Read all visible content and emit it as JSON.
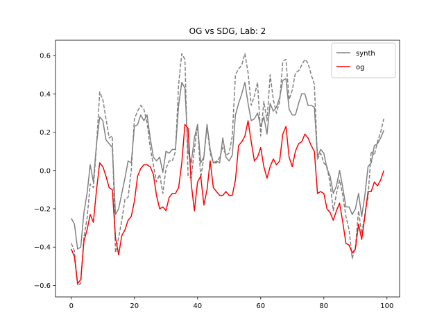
{
  "chart_data": {
    "type": "line",
    "title": "OG vs SDG, Lab: 2",
    "xlabel": "",
    "ylabel": "",
    "xlim": [
      -5,
      104
    ],
    "ylim": [
      -0.66,
      0.68
    ],
    "xticks": [
      0,
      20,
      40,
      60,
      80,
      100
    ],
    "yticks": [
      -0.6,
      -0.4,
      -0.2,
      0.0,
      0.2,
      0.4,
      0.6
    ],
    "xtick_labels": [
      "0",
      "20",
      "40",
      "60",
      "80",
      "100"
    ],
    "ytick_labels": [
      "−0.6",
      "−0.4",
      "−0.2",
      "0.0",
      "0.2",
      "0.4",
      "0.6"
    ],
    "grid": false,
    "legend_position": "upper right",
    "x": [
      0,
      1,
      2,
      3,
      4,
      5,
      6,
      7,
      8,
      9,
      10,
      11,
      12,
      13,
      14,
      15,
      16,
      17,
      18,
      19,
      20,
      21,
      22,
      23,
      24,
      25,
      26,
      27,
      28,
      29,
      30,
      31,
      32,
      33,
      34,
      35,
      36,
      37,
      38,
      39,
      40,
      41,
      42,
      43,
      44,
      45,
      46,
      47,
      48,
      49,
      50,
      51,
      52,
      53,
      54,
      55,
      56,
      57,
      58,
      59,
      60,
      61,
      62,
      63,
      64,
      65,
      66,
      67,
      68,
      69,
      70,
      71,
      72,
      73,
      74,
      75,
      76,
      77,
      78,
      79,
      80,
      81,
      82,
      83,
      84,
      85,
      86,
      87,
      88,
      89,
      90,
      91,
      92,
      93,
      94,
      95,
      96,
      97,
      98,
      99
    ],
    "series": [
      {
        "name": "synth",
        "color": "#808080",
        "style": "solid",
        "values": [
          -0.25,
          -0.28,
          -0.41,
          -0.4,
          -0.22,
          -0.12,
          0.03,
          -0.06,
          0.14,
          0.28,
          0.26,
          0.16,
          0.14,
          0.12,
          -0.23,
          -0.2,
          -0.12,
          -0.04,
          0.05,
          0.04,
          0.23,
          0.24,
          0.29,
          0.26,
          0.29,
          0.17,
          0.07,
          0.05,
          0.07,
          -0.01,
          0.1,
          0.09,
          0.11,
          0.11,
          0.34,
          0.46,
          0.43,
          0.1,
          0.04,
          0.17,
          0.24,
          0.04,
          0.07,
          0.24,
          0.11,
          0.04,
          0.05,
          0.04,
          0.17,
          0.07,
          0.05,
          0.08,
          0.29,
          0.35,
          0.4,
          0.46,
          0.35,
          0.26,
          0.27,
          0.3,
          0.23,
          0.28,
          0.19,
          0.35,
          0.31,
          0.33,
          0.38,
          0.47,
          0.48,
          0.32,
          0.29,
          0.29,
          0.35,
          0.4,
          0.4,
          0.34,
          0.34,
          0.33,
          0.07,
          0.11,
          0.09,
          0.01,
          -0.03,
          -0.12,
          -0.08,
          0.0,
          -0.09,
          -0.19,
          -0.19,
          -0.23,
          -0.2,
          -0.12,
          -0.24,
          -0.13,
          0.02,
          0.04,
          0.13,
          0.14,
          0.17,
          0.21
        ]
      },
      {
        "name": "",
        "color": "#808080",
        "style": "dashed",
        "values": [
          -0.38,
          -0.42,
          -0.6,
          -0.59,
          -0.35,
          -0.25,
          -0.07,
          -0.09,
          0.13,
          0.41,
          0.37,
          0.27,
          0.17,
          0.18,
          -0.43,
          -0.35,
          -0.26,
          -0.15,
          -0.14,
          0.0,
          0.27,
          0.31,
          0.34,
          0.32,
          0.25,
          0.12,
          0.03,
          -0.06,
          -0.02,
          -0.12,
          0.01,
          0.05,
          0.05,
          0.1,
          0.45,
          0.61,
          0.58,
          -0.03,
          -0.04,
          0.11,
          0.24,
          -0.04,
          0.07,
          0.23,
          0.09,
          0.04,
          0.04,
          0.07,
          0.12,
          0.08,
          0.09,
          0.18,
          0.5,
          0.53,
          0.55,
          0.61,
          0.51,
          0.34,
          0.39,
          0.46,
          0.18,
          0.36,
          0.26,
          0.5,
          0.37,
          0.3,
          0.36,
          0.57,
          0.58,
          0.37,
          0.42,
          0.51,
          0.52,
          0.55,
          0.58,
          0.56,
          0.5,
          0.45,
          0.06,
          0.09,
          0.04,
          0.02,
          -0.07,
          -0.21,
          -0.12,
          -0.05,
          -0.13,
          -0.24,
          -0.31,
          -0.46,
          -0.4,
          -0.21,
          -0.33,
          -0.23,
          -0.14,
          0.1,
          0.08,
          0.15,
          0.2,
          0.27
        ]
      },
      {
        "name": "og",
        "color": "#ff0000",
        "style": "solid",
        "values": [
          -0.41,
          -0.45,
          -0.59,
          -0.57,
          -0.37,
          -0.31,
          -0.23,
          -0.27,
          -0.1,
          0.04,
          0.02,
          -0.03,
          -0.09,
          -0.1,
          -0.35,
          -0.44,
          -0.34,
          -0.31,
          -0.26,
          -0.24,
          -0.16,
          -0.03,
          0.01,
          0.03,
          0.03,
          0.02,
          -0.02,
          -0.13,
          -0.2,
          -0.19,
          -0.21,
          -0.14,
          -0.12,
          -0.12,
          -0.09,
          0.04,
          0.24,
          0.22,
          -0.07,
          -0.21,
          -0.06,
          -0.03,
          -0.18,
          -0.1,
          0.05,
          -0.09,
          -0.11,
          -0.13,
          -0.13,
          -0.11,
          -0.13,
          -0.13,
          -0.05,
          0.13,
          0.15,
          0.18,
          0.26,
          0.15,
          0.05,
          0.07,
          0.12,
          0.02,
          -0.04,
          0.02,
          0.06,
          0.03,
          0.05,
          0.19,
          0.23,
          0.07,
          0.02,
          0.1,
          0.14,
          0.15,
          0.19,
          0.17,
          0.13,
          0.1,
          -0.12,
          -0.11,
          -0.12,
          -0.2,
          -0.22,
          -0.26,
          -0.21,
          -0.17,
          -0.27,
          -0.38,
          -0.39,
          -0.43,
          -0.41,
          -0.28,
          -0.36,
          -0.24,
          -0.11,
          -0.11,
          -0.06,
          -0.08,
          -0.05,
          0.0
        ]
      }
    ],
    "legend": [
      {
        "label": "synth",
        "color": "#808080",
        "style": "solid"
      },
      {
        "label": "og",
        "color": "#ff0000",
        "style": "solid"
      }
    ]
  }
}
